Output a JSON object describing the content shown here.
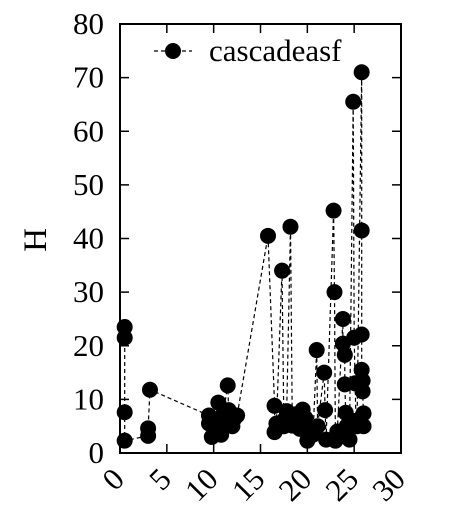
{
  "chart_data": {
    "type": "scatter",
    "ylabel": "H",
    "xlabel": "",
    "xlim": [
      0,
      30
    ],
    "ylim": [
      0,
      80
    ],
    "xticks": [
      0,
      5,
      10,
      15,
      20,
      25,
      30
    ],
    "yticks": [
      0,
      10,
      20,
      30,
      40,
      50,
      60,
      70,
      80
    ],
    "grid": false,
    "legend_position": "top-left",
    "series": [
      {
        "name": "cascadeasf",
        "line_style": "dashed",
        "marker": "filled-circle",
        "color": "#000000",
        "points": [
          [
            0.5,
            23.5
          ],
          [
            0.5,
            21.5
          ],
          [
            0.5,
            7.6
          ],
          [
            0.5,
            2.3
          ],
          [
            3.0,
            3.2
          ],
          [
            3.0,
            4.6
          ],
          [
            3.2,
            11.8
          ],
          [
            9.5,
            7.0
          ],
          [
            9.5,
            5.5
          ],
          [
            9.8,
            3.0
          ],
          [
            10.5,
            9.4
          ],
          [
            10.6,
            5.5
          ],
          [
            10.8,
            3.4
          ],
          [
            11.0,
            7.0
          ],
          [
            11.5,
            12.6
          ],
          [
            11.6,
            8.0
          ],
          [
            12.0,
            5.0
          ],
          [
            12.2,
            6.4
          ],
          [
            12.5,
            7.0
          ],
          [
            15.8,
            40.5
          ],
          [
            16.5,
            8.8
          ],
          [
            16.5,
            3.9
          ],
          [
            16.7,
            5.5
          ],
          [
            17.3,
            34.0
          ],
          [
            17.5,
            5.0
          ],
          [
            17.6,
            6.3
          ],
          [
            17.8,
            7.8
          ],
          [
            18.2,
            42.2
          ],
          [
            18.4,
            5.1
          ],
          [
            18.5,
            6.5
          ],
          [
            18.7,
            7.2
          ],
          [
            19.2,
            4.5
          ],
          [
            19.4,
            5.6
          ],
          [
            19.5,
            8.1
          ],
          [
            19.8,
            6.5
          ],
          [
            20.0,
            2.3
          ],
          [
            20.3,
            4.9
          ],
          [
            20.6,
            3.4
          ],
          [
            21.0,
            19.2
          ],
          [
            21.1,
            5.0
          ],
          [
            21.8,
            15.0
          ],
          [
            21.9,
            8.0
          ],
          [
            22.0,
            2.5
          ],
          [
            22.8,
            45.2
          ],
          [
            22.9,
            30.0
          ],
          [
            23.0,
            2.3
          ],
          [
            23.2,
            4.0
          ],
          [
            23.8,
            25.0
          ],
          [
            23.8,
            20.4
          ],
          [
            24.0,
            18.3
          ],
          [
            24.0,
            12.8
          ],
          [
            24.1,
            7.5
          ],
          [
            24.2,
            5.0
          ],
          [
            24.3,
            3.0
          ],
          [
            24.5,
            2.5
          ],
          [
            24.9,
            65.5
          ],
          [
            25.0,
            21.5
          ],
          [
            25.1,
            13.0
          ],
          [
            25.2,
            6.0
          ],
          [
            25.3,
            5.0
          ],
          [
            25.8,
            71.0
          ],
          [
            25.8,
            41.5
          ],
          [
            25.8,
            22.1
          ],
          [
            25.8,
            15.5
          ],
          [
            25.9,
            13.5
          ],
          [
            25.9,
            11.5
          ],
          [
            26.0,
            7.4
          ],
          [
            26.0,
            5.0
          ]
        ]
      }
    ]
  }
}
